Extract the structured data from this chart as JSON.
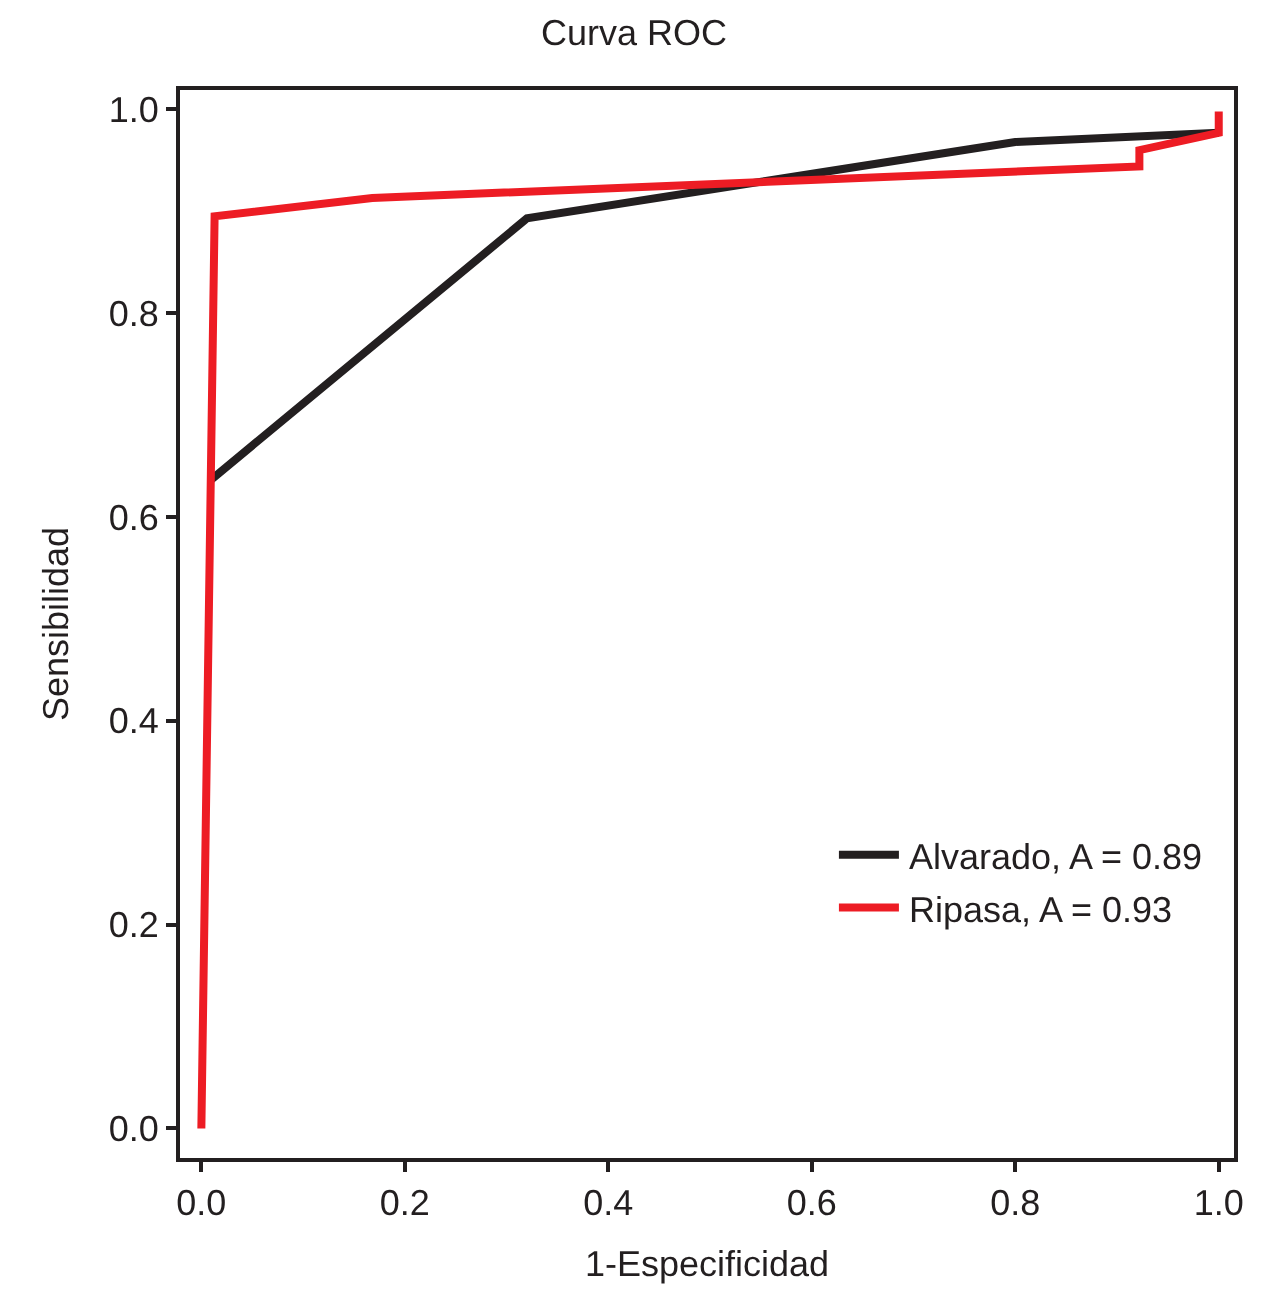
{
  "chart_data": {
    "type": "line",
    "title": "Curva ROC",
    "xlabel": "1-Especificidad",
    "ylabel": "Sensibilidad",
    "xlim": [
      -0.021,
      1.015
    ],
    "ylim": [
      -0.029,
      1.019
    ],
    "xticks": [
      {
        "value": 0,
        "label": "0.0"
      },
      {
        "value": 0.2,
        "label": "0.2"
      },
      {
        "value": 0.4,
        "label": "0.4"
      },
      {
        "value": 0.6,
        "label": "0.6"
      },
      {
        "value": 0.8,
        "label": "0.8"
      },
      {
        "value": 1,
        "label": "1.0"
      }
    ],
    "yticks": [
      {
        "value": 0,
        "label": "0.0"
      },
      {
        "value": 0.2,
        "label": "0.2"
      },
      {
        "value": 0.4,
        "label": "0.4"
      },
      {
        "value": 0.6,
        "label": "0.6"
      },
      {
        "value": 0.8,
        "label": "0.8"
      },
      {
        "value": 1,
        "label": "1.0"
      }
    ],
    "legend": "bottom right",
    "marker": "none",
    "line_style": "solid",
    "series": [
      {
        "name": "Alvarado, A = 0.89",
        "color": "#231f20",
        "x": [
          0.01,
          0.32,
          0.8,
          1.0
        ],
        "values": [
          0.637,
          0.893,
          0.968,
          0.977
        ]
      },
      {
        "name": "Ripasa, A = 0.93",
        "color": "#ed1c24",
        "x": [
          0.0,
          0.013,
          0.168,
          0.922,
          0.922,
          1.0,
          1.0
        ],
        "values": [
          0.0,
          0.895,
          0.913,
          0.944,
          0.96,
          0.977,
          0.998
        ]
      }
    ]
  }
}
